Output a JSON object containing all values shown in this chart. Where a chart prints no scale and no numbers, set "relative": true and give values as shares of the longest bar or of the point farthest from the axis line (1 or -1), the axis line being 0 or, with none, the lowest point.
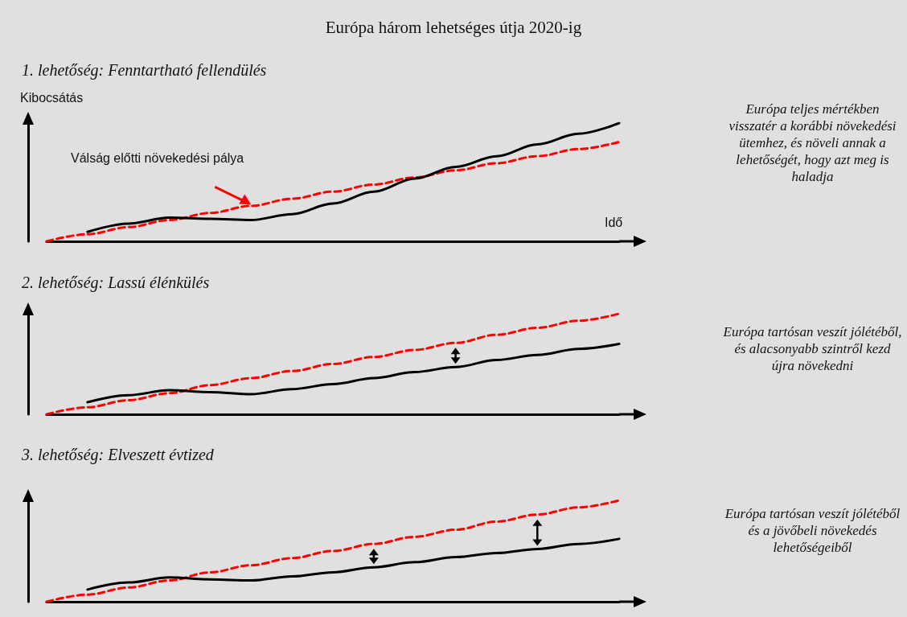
{
  "chart_data": [
    {
      "type": "line",
      "title": "Európa három lehetséges útja 2020-ig",
      "subtitle": "1. lehetőség: Fenntartható fellendülés",
      "xlabel": "Idő",
      "ylabel": "Kibocsátás",
      "relative": true,
      "marker": "none",
      "grid": false,
      "categories": [
        null,
        null,
        null,
        null,
        null,
        null,
        null,
        null,
        null,
        null,
        null,
        null,
        null,
        null,
        null
      ],
      "series": [
        {
          "color": "#ff0000",
          "line_style": "dashed",
          "values": [
            0.0,
            0.06,
            0.12,
            0.18,
            0.24,
            0.3,
            0.36,
            0.42,
            0.48,
            0.54,
            0.6,
            0.66,
            0.72,
            0.78,
            0.84
          ]
        },
        {
          "color": "#000000",
          "line_style": "solid",
          "values": [
            null,
            0.08,
            0.15,
            0.2,
            0.19,
            0.18,
            0.23,
            0.32,
            0.42,
            0.53,
            0.63,
            0.72,
            0.82,
            0.91,
            1.0
          ]
        }
      ],
      "annotations": [
        "Válság előtti növekedési pálya",
        "Európa teljes mértékben visszatér a korábbi növekedési ütemhez, és növeli annak a lehetőségét, hogy azt meg is haladja"
      ]
    },
    {
      "type": "line",
      "subtitle": "2. lehetőség: Lassú élénkülés",
      "relative": true,
      "marker": "none",
      "grid": false,
      "categories": [
        null,
        null,
        null,
        null,
        null,
        null,
        null,
        null,
        null,
        null,
        null,
        null,
        null,
        null,
        null
      ],
      "series": [
        {
          "color": "#ff0000",
          "line_style": "dashed",
          "values": [
            0.0,
            0.07,
            0.14,
            0.21,
            0.29,
            0.36,
            0.43,
            0.5,
            0.57,
            0.64,
            0.71,
            0.79,
            0.86,
            0.93,
            1.0
          ]
        },
        {
          "color": "#000000",
          "line_style": "solid",
          "values": [
            null,
            0.12,
            0.19,
            0.24,
            0.22,
            0.2,
            0.25,
            0.3,
            0.36,
            0.42,
            0.47,
            0.54,
            0.59,
            0.65,
            0.7
          ]
        }
      ],
      "annotations": [
        "Európa tartósan veszít jólétéből, és alacsonyabb szintről kezd újra növekedni"
      ]
    },
    {
      "type": "line",
      "subtitle": "3. lehetőség: Elveszett évtized",
      "relative": true,
      "marker": "none",
      "grid": false,
      "categories": [
        null,
        null,
        null,
        null,
        null,
        null,
        null,
        null,
        null,
        null,
        null,
        null,
        null,
        null,
        null
      ],
      "series": [
        {
          "color": "#ff0000",
          "line_style": "dashed",
          "values": [
            0.0,
            0.07,
            0.14,
            0.21,
            0.29,
            0.36,
            0.43,
            0.5,
            0.57,
            0.64,
            0.71,
            0.79,
            0.86,
            0.93,
            1.0
          ]
        },
        {
          "color": "#000000",
          "line_style": "solid",
          "values": [
            null,
            0.12,
            0.19,
            0.24,
            0.22,
            0.21,
            0.25,
            0.29,
            0.34,
            0.39,
            0.44,
            0.48,
            0.52,
            0.57,
            0.62
          ]
        }
      ],
      "annotations": [
        "Európa tartósan veszít jólétéből és a jövőbeli növekedés lehetőségeiből"
      ]
    }
  ]
}
